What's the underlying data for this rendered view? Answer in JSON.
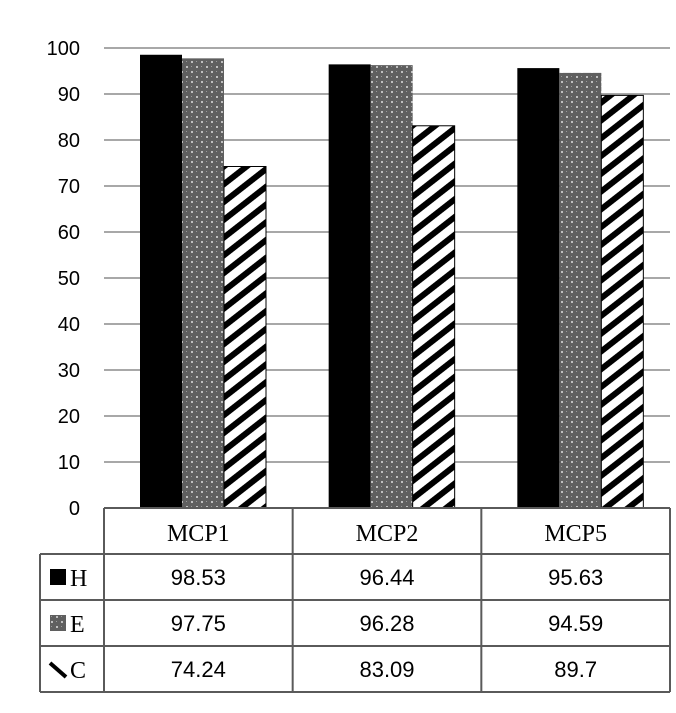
{
  "chart_data": {
    "type": "bar",
    "categories": [
      "MCP1",
      "MCP2",
      "MCP5"
    ],
    "series": [
      {
        "name": "H",
        "values": [
          98.53,
          96.44,
          95.63
        ],
        "pattern": "solid",
        "color": "#000000"
      },
      {
        "name": "E",
        "values": [
          97.75,
          96.28,
          94.59
        ],
        "pattern": "dotted",
        "color": "#5a5a5a"
      },
      {
        "name": "C",
        "values": [
          74.24,
          83.09,
          89.7
        ],
        "pattern": "diagonal-stripes",
        "color": "#000000"
      }
    ],
    "value_labels": [
      [
        "98.53",
        "96.44",
        "95.63"
      ],
      [
        "97.75",
        "96.28",
        "94.59"
      ],
      [
        "74.24",
        "83.09",
        "89.7"
      ]
    ],
    "yticks": [
      "0",
      "10",
      "20",
      "30",
      "40",
      "50",
      "60",
      "70",
      "80",
      "90",
      "100"
    ],
    "ylim": [
      0,
      100
    ],
    "grid": true,
    "legend": "data-table",
    "title": "",
    "xlabel": "",
    "ylabel": ""
  }
}
